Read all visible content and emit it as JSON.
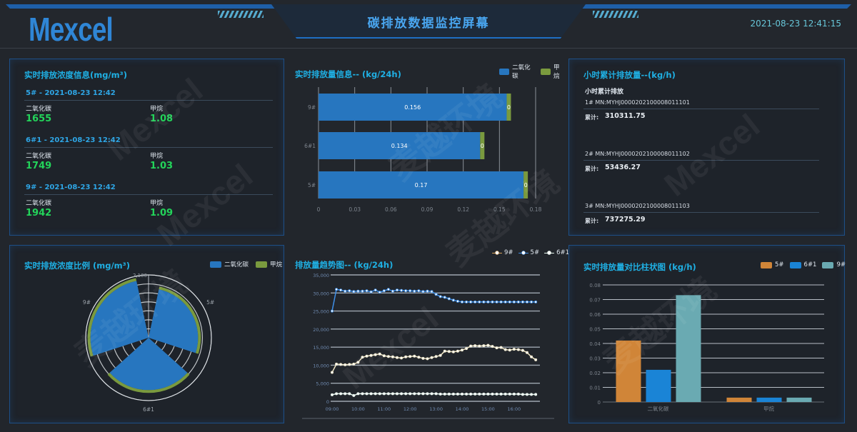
{
  "header": {
    "logo": "Mexcel",
    "title": "碳排放数据监控屏幕",
    "datetime": "2021-08-23 12:41:15"
  },
  "watermark": "Mexcel 麦越环境 Mexcel Environmental",
  "colors": {
    "co2": "#2776bf",
    "ch4": "#7a9a3e",
    "s5": "#d08538",
    "s6": "#1a84d6",
    "s9": "#6aaab2",
    "accent": "#1fb0e4",
    "value": "#23d45a"
  },
  "concentration": {
    "title": "实时排放浓度信息(mg/m³)",
    "label_co2": "二氧化碳",
    "label_ch4": "甲烷",
    "stations": [
      {
        "header": "5# - 2021-08-23 12:42",
        "co2": "1655",
        "ch4": "1.08"
      },
      {
        "header": "6#1 - 2021-08-23 12:42",
        "co2": "1749",
        "ch4": "1.03"
      },
      {
        "header": "9# - 2021-08-23 12:42",
        "co2": "1942",
        "ch4": "1.09"
      }
    ]
  },
  "hourly": {
    "title": "小时累计排放量--(kg/h)",
    "subtitle": "小时累计排放",
    "cum_label": "累计:",
    "items": [
      {
        "mn": "1# MN:MYHJ0000202100008011101",
        "value": "310311.75"
      },
      {
        "mn": "2# MN:MYHJ0000202100008011102",
        "value": "53436.27"
      },
      {
        "mn": "3# MN:MYHJ0000202100008011103",
        "value": "737275.29"
      }
    ]
  },
  "chart_data": [
    {
      "id": "emission24h",
      "type": "bar",
      "orientation": "horizontal",
      "stacked": true,
      "title": "实时排放量信息-- (kg/24h)",
      "categories": [
        "5#",
        "6#1",
        "9#"
      ],
      "series": [
        {
          "name": "二氧化碳",
          "values": [
            0.17,
            0.134,
            0.156
          ]
        },
        {
          "name": "甲烷",
          "values": [
            0,
            0,
            0
          ]
        }
      ],
      "xlim": [
        0,
        0.18
      ],
      "xticks": [
        "0",
        "0.03",
        "0.06",
        "0.09",
        "0.12",
        "0.15",
        "0.18"
      ],
      "grid": true,
      "legend": "top-right"
    },
    {
      "id": "ratio",
      "type": "polar-bar",
      "stacked": true,
      "title": "实时排放浓度比例 (mg/m³)",
      "categories": [
        "5#",
        "6#1",
        "9#"
      ],
      "series": [
        {
          "name": "二氧化碳",
          "values": [
            1655,
            1749,
            1942
          ]
        },
        {
          "name": "甲烷",
          "values": [
            1.08,
            1.03,
            1.09
          ]
        }
      ],
      "rlim": [
        0,
        2100
      ],
      "rtick_top": "2,100",
      "legend": "top-right"
    },
    {
      "id": "trend",
      "type": "line",
      "title": "排放量趋势图-- (kg/24h)",
      "x_start": "09:00",
      "x_step_minutes": 10,
      "xticks": [
        "09:00",
        "10:00",
        "11:00",
        "12:00",
        "13:00",
        "14:00",
        "15:00",
        "16:00"
      ],
      "ylim": [
        0,
        35000
      ],
      "yticks": [
        "0",
        "5,000",
        "10,000",
        "15,000",
        "20,000",
        "25,000",
        "30,000",
        "35,000"
      ],
      "grid": true,
      "legend": "top-right",
      "series": [
        {
          "name": "9#",
          "color": "#f3e9c8",
          "values": [
            8000,
            10300,
            10200,
            10100,
            10200,
            10300,
            10800,
            12200,
            12500,
            12700,
            12900,
            13100,
            12600,
            12400,
            12300,
            12100,
            12000,
            12300,
            12400,
            12500,
            12200,
            11900,
            11800,
            12100,
            12400,
            12700,
            13900,
            13800,
            13700,
            13900,
            14200,
            14600,
            15300,
            15400,
            15300,
            15400,
            15500,
            15200,
            14800,
            14900,
            14300,
            14200,
            14400,
            14300,
            14100,
            13500,
            12300,
            11500
          ]
        },
        {
          "name": "5#",
          "color": "#3f8fe8",
          "values": [
            25000,
            31000,
            30800,
            30500,
            30600,
            30400,
            30500,
            30500,
            30600,
            30300,
            30800,
            30200,
            30600,
            31000,
            30500,
            30800,
            30700,
            30600,
            30600,
            30500,
            30600,
            30400,
            30500,
            30400,
            29600,
            29000,
            28800,
            28400,
            28000,
            27700,
            27500,
            27500,
            27500,
            27500,
            27500,
            27500,
            27500,
            27500,
            27500,
            27500,
            27500,
            27500,
            27500,
            27500,
            27500,
            27500,
            27500,
            27500
          ]
        },
        {
          "name": "6#1",
          "color": "#e6f6ee",
          "values": [
            1800,
            2100,
            2100,
            2100,
            2100,
            1600,
            2100,
            2100,
            2100,
            2100,
            2100,
            2100,
            2100,
            2100,
            2100,
            2100,
            2100,
            2100,
            2100,
            2100,
            2100,
            2100,
            2100,
            2100,
            2100,
            2000,
            2000,
            2000,
            2000,
            2000,
            2000,
            2000,
            2000,
            2000,
            2000,
            2000,
            2000,
            2000,
            2000,
            2000,
            2000,
            2000,
            2000,
            2000,
            1900,
            1900,
            1900,
            1900
          ]
        }
      ]
    },
    {
      "id": "compare",
      "type": "bar",
      "title": "实时排放量对比柱状图 (kg/h)",
      "categories": [
        "二氧化碳",
        "甲烷"
      ],
      "series": [
        {
          "name": "5#",
          "values": [
            0.042,
            0.003
          ]
        },
        {
          "name": "6#1",
          "values": [
            0.022,
            0.003
          ]
        },
        {
          "name": "9#",
          "values": [
            0.073,
            0.003
          ]
        }
      ],
      "ylim": [
        0,
        0.08
      ],
      "yticks": [
        "0",
        "0.01",
        "0.02",
        "0.03",
        "0.04",
        "0.05",
        "0.06",
        "0.07",
        "0.08"
      ],
      "grid": true,
      "legend": "top-right"
    }
  ]
}
